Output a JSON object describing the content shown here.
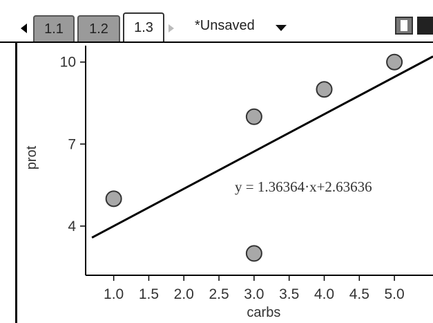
{
  "tabs": [
    {
      "label": "1.1",
      "active": false
    },
    {
      "label": "1.2",
      "active": false
    },
    {
      "label": "1.3",
      "active": true
    }
  ],
  "document": {
    "title": "*Unsaved"
  },
  "icons": [
    "left-arrow-icon",
    "right-arrow-icon",
    "dropdown-caret-icon",
    "page-layout-icon"
  ],
  "chart_data": {
    "type": "scatter",
    "xlabel": "carbs",
    "ylabel": "prot",
    "xlim": [
      0.6,
      5.55
    ],
    "ylim": [
      2.2,
      10.6
    ],
    "x_ticks": [
      "1.0",
      "1.5",
      "2.0",
      "2.5",
      "3.0",
      "3.5",
      "4.0",
      "4.5",
      "5.0"
    ],
    "x_tick_values": [
      1.0,
      1.5,
      2.0,
      2.5,
      3.0,
      3.5,
      4.0,
      4.5,
      5.0
    ],
    "y_ticks": [
      "4",
      "7",
      "10"
    ],
    "y_tick_values": [
      4,
      7,
      10
    ],
    "points": [
      {
        "x": 1,
        "y": 5
      },
      {
        "x": 3,
        "y": 8
      },
      {
        "x": 3,
        "y": 3
      },
      {
        "x": 4,
        "y": 9
      },
      {
        "x": 5,
        "y": 10
      }
    ],
    "regression": {
      "slope": 1.36364,
      "intercept": 2.63636,
      "label": "y = 1.36364·x+2.63636"
    },
    "colors": {
      "point_fill": "#a8a8a8",
      "point_stroke": "#333333",
      "line": "#000000"
    }
  }
}
